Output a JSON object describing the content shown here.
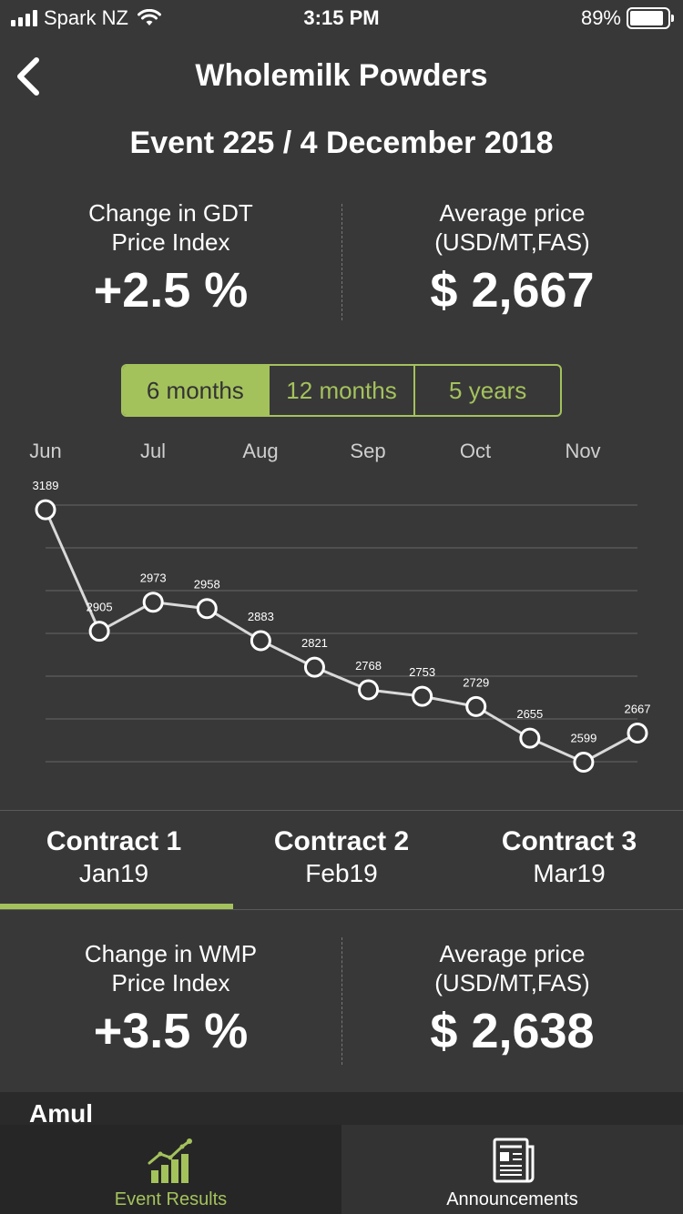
{
  "status_bar": {
    "carrier": "Spark NZ",
    "time": "3:15 PM",
    "battery": "89%",
    "battery_level": 0.89
  },
  "header": {
    "title": "Wholemilk Powders",
    "back_icon": "chevron-left-icon"
  },
  "event": {
    "title": "Event 225 / 4 December 2018"
  },
  "summary_top": {
    "change_label_1": "Change in GDT",
    "change_label_2": "Price Index",
    "change_value": "+2.5 %",
    "avg_label_1": "Average price",
    "avg_label_2": "(USD/MT,FAS)",
    "avg_value": "$ 2,667"
  },
  "range_tabs": [
    "6 months",
    "12 months",
    "5 years"
  ],
  "chart_data": {
    "type": "line",
    "x_month_labels": [
      "Jun",
      "Jul",
      "Aug",
      "Sep",
      "Oct",
      "Nov"
    ],
    "values": [
      3189,
      2905,
      2973,
      2958,
      2883,
      2821,
      2768,
      2753,
      2729,
      2655,
      2599,
      2667
    ],
    "grid": true,
    "colors": {
      "line": "#d9d9d9",
      "marker_fill": "#383838",
      "marker_stroke": "#ffffff",
      "grid": "#666666"
    }
  },
  "contracts": [
    {
      "name": "Contract 1",
      "month": "Jan19"
    },
    {
      "name": "Contract 2",
      "month": "Feb19"
    },
    {
      "name": "Contract 3",
      "month": "Mar19"
    }
  ],
  "summary_bottom": {
    "change_label_1": "Change in WMP",
    "change_label_2": "Price Index",
    "change_value": "+3.5 %",
    "avg_label_1": "Average price",
    "avg_label_2": "(USD/MT,FAS)",
    "avg_value": "$ 2,638"
  },
  "section_label": "Amul",
  "tabbar": [
    {
      "label": "Event Results",
      "icon": "bar-chart-icon"
    },
    {
      "label": "Announcements",
      "icon": "newspaper-icon"
    }
  ],
  "colors": {
    "accent": "#a4c25c",
    "background": "#383838"
  }
}
